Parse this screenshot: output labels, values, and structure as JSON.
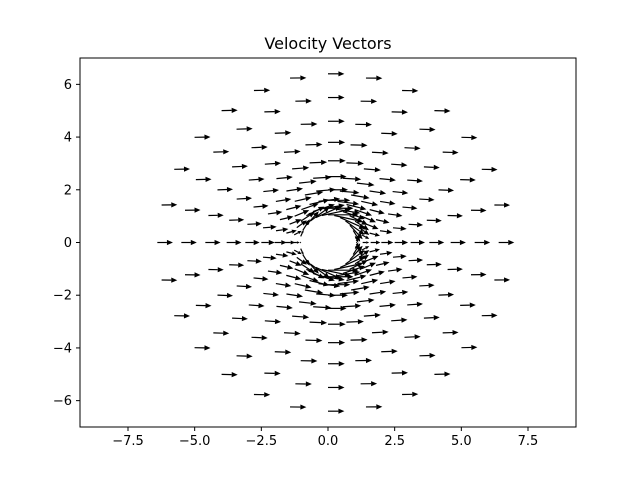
{
  "chart_data": {
    "type": "quiver",
    "title": "Velocity Vectors",
    "xlabel": "",
    "ylabel": "",
    "xlim": [
      -9.3,
      9.3
    ],
    "ylim": [
      -7.0,
      7.0
    ],
    "aspect": "equal",
    "grid": false,
    "legend": "none",
    "x_ticks": [
      -7.5,
      -5.0,
      -2.5,
      0.0,
      2.5,
      5.0,
      7.5
    ],
    "x_tick_labels": [
      "−7.5",
      "−5.0",
      "−2.5",
      "0.0",
      "2.5",
      "5.0",
      "7.5"
    ],
    "y_ticks": [
      -6,
      -4,
      -2,
      0,
      2,
      4,
      6
    ],
    "y_tick_labels": [
      "−6",
      "−4",
      "−2",
      "0",
      "2",
      "4",
      "6"
    ],
    "field": {
      "model": "uniform flow past a cylinder",
      "uniform_speed": 1.0,
      "cylinder_radius": 1.0,
      "cylinder_center": [
        0,
        0
      ],
      "grid": "polar",
      "radii": [
        1.05,
        1.3,
        1.6,
        2.0,
        2.5,
        3.1,
        3.8,
        4.6,
        5.5,
        6.4
      ],
      "angles_per_ring": 28,
      "vector_scale": 0.6
    },
    "colors": {
      "arrow": "#000000",
      "cylinder_fill": "#ffffff",
      "axes": "#000000",
      "background": "#ffffff"
    }
  }
}
